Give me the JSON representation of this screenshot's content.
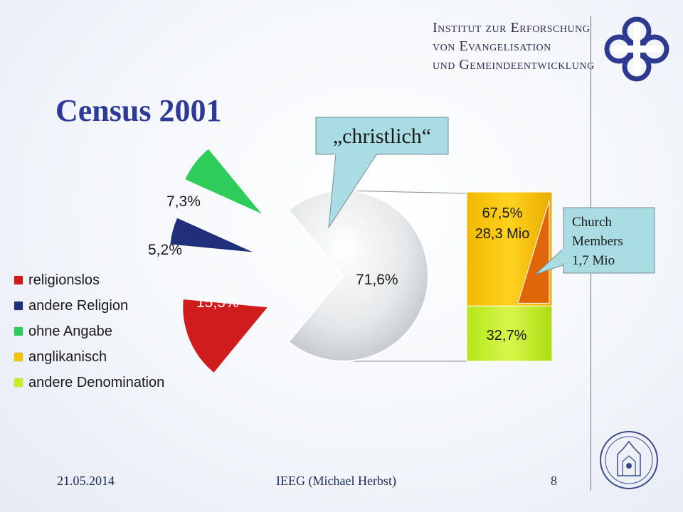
{
  "header": {
    "institute_lines": [
      "Institut zur Erforschung",
      "von Evangelisation",
      "und Gemeindeentwicklung"
    ]
  },
  "slide": {
    "title": "Census 2001"
  },
  "callouts": {
    "christlich": "„christlich“",
    "church_members": [
      "Church",
      "Members",
      "1,7 Mio"
    ]
  },
  "chart_data": {
    "type": "pie",
    "slices": [
      {
        "label": "religionslos",
        "value": 15.5,
        "display": "15,5%",
        "color": "#d01c1c",
        "exploded": true
      },
      {
        "label": "andere Religion",
        "value": 5.2,
        "display": "5,2%",
        "color": "#1f2f7a",
        "exploded": true
      },
      {
        "label": "ohne Angabe",
        "value": 7.3,
        "display": "7,3%",
        "color": "#2ecc5a",
        "exploded": true
      },
      {
        "label": "christlich",
        "value": 71.6,
        "display": "71,6%",
        "color": "#e4e7ea",
        "exploded": false
      }
    ],
    "breakdown": {
      "type": "stacked_bar",
      "of": "christlich",
      "segments": [
        {
          "label": "anglikanisch",
          "value": 67.5,
          "display": [
            "67,5%",
            "28,3 Mio"
          ],
          "color": "#f5c400"
        },
        {
          "label": "andere Denomination",
          "value": 32.7,
          "display": [
            "32,7%"
          ],
          "color": "#c6ee2a"
        }
      ],
      "highlight": {
        "label": "Church Members",
        "value_text": "1,7 Mio",
        "color": "#e0660a"
      }
    },
    "legend": [
      {
        "label": "religionslos",
        "color": "#d01c1c"
      },
      {
        "label": "andere Religion",
        "color": "#1f2f7a"
      },
      {
        "label": "ohne Angabe",
        "color": "#2ecc5a"
      },
      {
        "label": "anglikanisch",
        "color": "#f5c400"
      },
      {
        "label": "andere Denomination",
        "color": "#c6ee2a"
      }
    ]
  },
  "footer": {
    "date": "21.05.2014",
    "author": "IEEG (Michael Herbst)",
    "page": "8"
  }
}
